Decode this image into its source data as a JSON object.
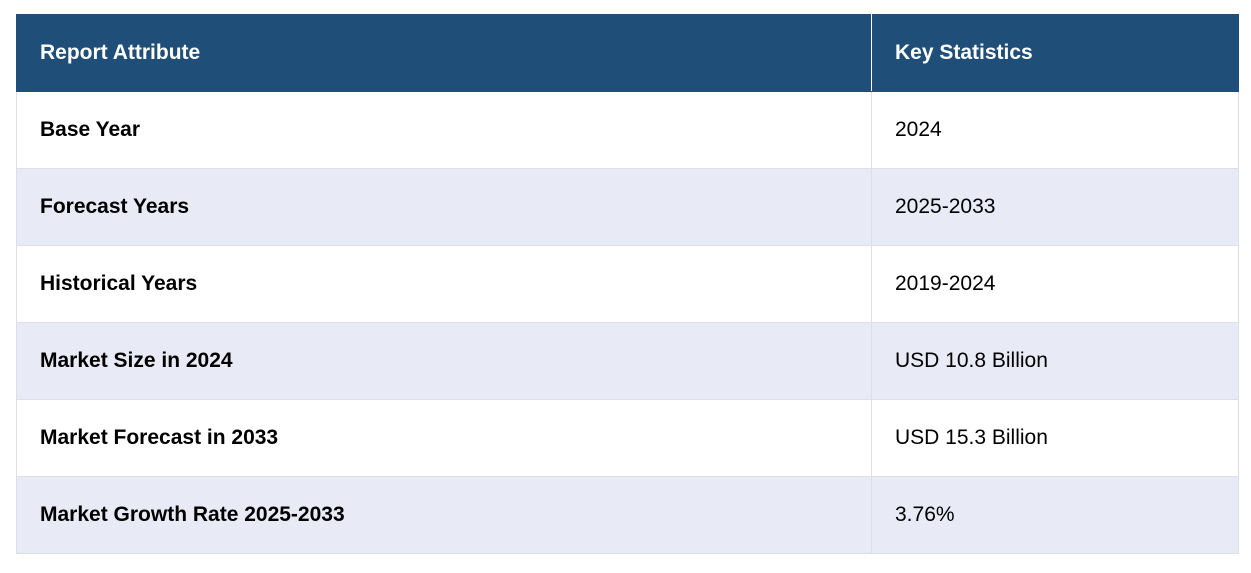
{
  "table": {
    "headers": [
      "Report Attribute",
      "Key Statistics"
    ],
    "rows": [
      {
        "attribute": "Base Year",
        "value": "2024"
      },
      {
        "attribute": "Forecast Years",
        "value": "2025-2033"
      },
      {
        "attribute": "Historical Years",
        "value": "2019-2024"
      },
      {
        "attribute": "Market Size in 2024",
        "value": "USD 10.8 Billion"
      },
      {
        "attribute": "Market Forecast in 2033",
        "value": "USD 15.3 Billion"
      },
      {
        "attribute": "Market Growth Rate 2025-2033",
        "value": "3.76%"
      }
    ]
  },
  "colors": {
    "header_bg": "#1f4e79",
    "header_text": "#ffffff",
    "row_alt_bg": "#e8eaf6",
    "border": "#dcdfe6"
  }
}
